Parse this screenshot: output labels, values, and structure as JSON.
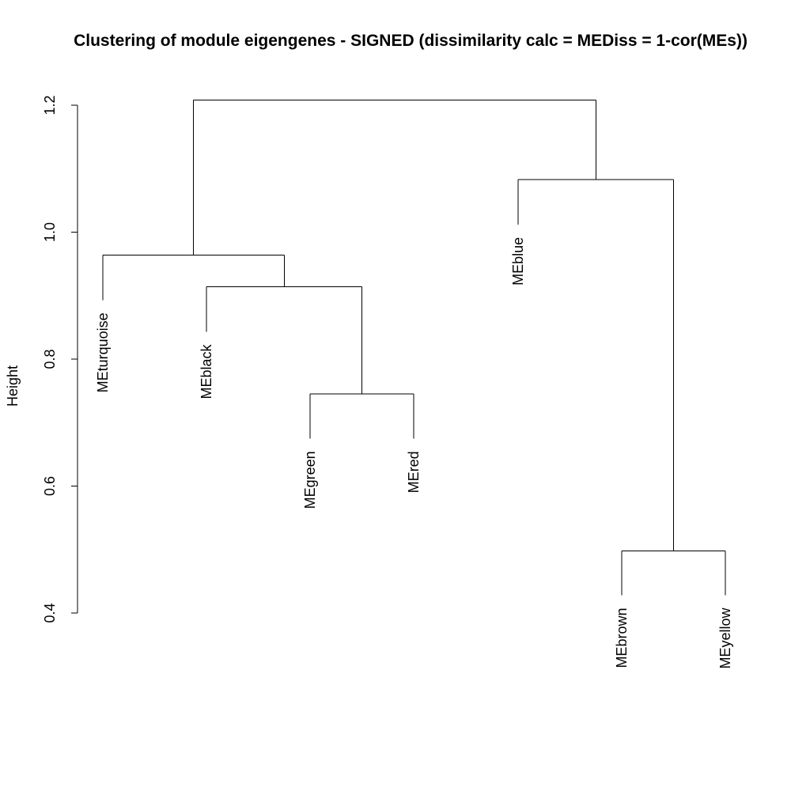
{
  "chart_data": {
    "type": "dendrogram",
    "title": "Clustering of module eigengenes - SIGNED (dissimilarity calc = MEDiss = 1-cor(MEs))",
    "ylabel": "Height",
    "xlabel": "",
    "ylim": [
      0.4,
      1.25
    ],
    "yticks": [
      0.4,
      0.6,
      0.8,
      1.0,
      1.2
    ],
    "ytick_labels": [
      "0.4",
      "0.6",
      "0.8",
      "1.0",
      "1.2"
    ],
    "leaves": [
      "MEturquoise",
      "MEblack",
      "MEgreen",
      "MEred",
      "MEblue",
      "MEbrown",
      "MEyellow"
    ],
    "merges": [
      {
        "left": "MEgreen",
        "right": "MEred",
        "height": 0.745
      },
      {
        "left": "MEbrown",
        "right": "MEyellow",
        "height": 0.498
      },
      {
        "left": "MEblack",
        "right": "MEgreen+MEred",
        "height": 0.914
      },
      {
        "left": "MEturquoise",
        "right": "MEblack+MEgreen+MEred",
        "height": 0.964
      },
      {
        "left": "MEblue",
        "right": "MEbrown+MEyellow",
        "height": 1.083
      },
      {
        "left": "MEturquoise+MEblack+MEgreen+MEred",
        "right": "MEblue+MEbrown+MEyellow",
        "height": 1.208
      }
    ],
    "leaf_tip_heights": {
      "MEturquoise": 0.893,
      "MEblack": 0.843,
      "MEgreen": 0.675,
      "MEred": 0.675,
      "MEblue": 1.012,
      "MEbrown": 0.428,
      "MEyellow": 0.428
    },
    "grid": false,
    "line_color": "#000000"
  }
}
